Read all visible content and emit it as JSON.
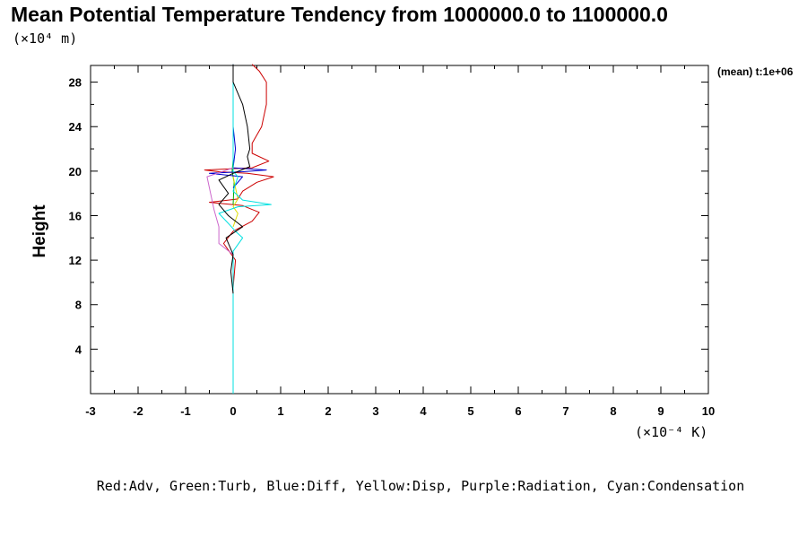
{
  "chart_data": {
    "type": "line",
    "title": "Mean Potential Temperature Tendency from 1000000.0 to 1100000.0",
    "ylabel": "Height",
    "y_unit": "(×10⁴ m)",
    "x_unit": "(×10⁻⁴ K)",
    "side_label": "(mean) t:1e+06",
    "legend": "Red:Adv, Green:Turb, Blue:Diff, Yellow:Disp, Purple:Radiation, Cyan:Condensation",
    "xlim": [
      -3,
      10
    ],
    "ylim": [
      0,
      29.5
    ],
    "x_ticks": [
      "-3",
      "-2",
      "-1",
      "0",
      "1",
      "2",
      "3",
      "4",
      "5",
      "6",
      "7",
      "8",
      "9",
      "10"
    ],
    "y_ticks": [
      "4",
      "8",
      "12",
      "16",
      "20",
      "24",
      "28"
    ],
    "grid": false,
    "series": [
      {
        "name": "Adv",
        "color": "#cc0000",
        "points": [
          [
            0,
            9.5
          ],
          [
            0.05,
            12
          ],
          [
            -0.2,
            13.5
          ],
          [
            0,
            14.6
          ],
          [
            0.4,
            15.5
          ],
          [
            0.55,
            16.3
          ],
          [
            0.2,
            16.9
          ],
          [
            -0.5,
            17.2
          ],
          [
            0.1,
            17.5
          ],
          [
            0.2,
            18.2
          ],
          [
            0.5,
            19
          ],
          [
            0.85,
            19.5
          ],
          [
            0.3,
            19.8
          ],
          [
            -0.3,
            19.95
          ],
          [
            -0.6,
            20.1
          ],
          [
            0.4,
            20.3
          ],
          [
            0.75,
            20.9
          ],
          [
            0.4,
            21.6
          ],
          [
            0.4,
            22.5
          ],
          [
            0.6,
            24
          ],
          [
            0.7,
            26
          ],
          [
            0.7,
            28
          ],
          [
            0.55,
            29
          ],
          [
            0.4,
            29.6
          ]
        ]
      },
      {
        "name": "Turb",
        "color": "#00aa00",
        "points": [
          [
            0,
            17
          ],
          [
            0.02,
            19
          ],
          [
            -0.02,
            20
          ],
          [
            0,
            21
          ]
        ]
      },
      {
        "name": "Diff",
        "color": "#0000cc",
        "points": [
          [
            0,
            18.5
          ],
          [
            0.2,
            19.5
          ],
          [
            -0.5,
            19.8
          ],
          [
            0.2,
            19.95
          ],
          [
            0.7,
            20.1
          ],
          [
            0,
            20.3
          ],
          [
            0.05,
            22
          ],
          [
            0,
            24
          ],
          [
            0,
            28
          ],
          [
            0,
            29.6
          ]
        ]
      },
      {
        "name": "Disp",
        "color": "#dddd00",
        "points": [
          [
            0,
            15
          ],
          [
            0.1,
            16.2
          ],
          [
            0,
            16.8
          ],
          [
            0.1,
            17.5
          ],
          [
            0,
            19.5
          ]
        ]
      },
      {
        "name": "Radiation",
        "color": "#cc66cc",
        "points": [
          [
            0,
            12.5
          ],
          [
            -0.3,
            13.5
          ],
          [
            -0.3,
            15
          ],
          [
            -0.4,
            16.5
          ],
          [
            -0.55,
            19.5
          ],
          [
            -0.2,
            20
          ],
          [
            0,
            20.3
          ]
        ]
      },
      {
        "name": "Condensation",
        "color": "#00e0e0",
        "points": [
          [
            0,
            0
          ],
          [
            0,
            12.8
          ],
          [
            0.2,
            14
          ],
          [
            0.05,
            14.6
          ],
          [
            -0.1,
            15.3
          ],
          [
            -0.3,
            16.2
          ],
          [
            0.1,
            16.8
          ],
          [
            0.8,
            17
          ],
          [
            0.2,
            17.4
          ],
          [
            0,
            18.2
          ],
          [
            0.1,
            19.5
          ],
          [
            0,
            20
          ],
          [
            0,
            29.6
          ]
        ]
      },
      {
        "name": "",
        "color": "#000000",
        "points": [
          [
            0,
            9
          ],
          [
            -0.05,
            11
          ],
          [
            0,
            12.5
          ],
          [
            -0.15,
            14
          ],
          [
            0.2,
            15
          ],
          [
            -0.1,
            16
          ],
          [
            -0.3,
            17
          ],
          [
            -0.1,
            18
          ],
          [
            -0.3,
            19.2
          ],
          [
            0,
            19.8
          ],
          [
            0.35,
            20.4
          ],
          [
            0.3,
            21.3
          ],
          [
            0.35,
            22
          ],
          [
            0.3,
            24
          ],
          [
            0.2,
            26
          ],
          [
            0,
            28
          ],
          [
            0,
            29.6
          ]
        ]
      }
    ]
  }
}
